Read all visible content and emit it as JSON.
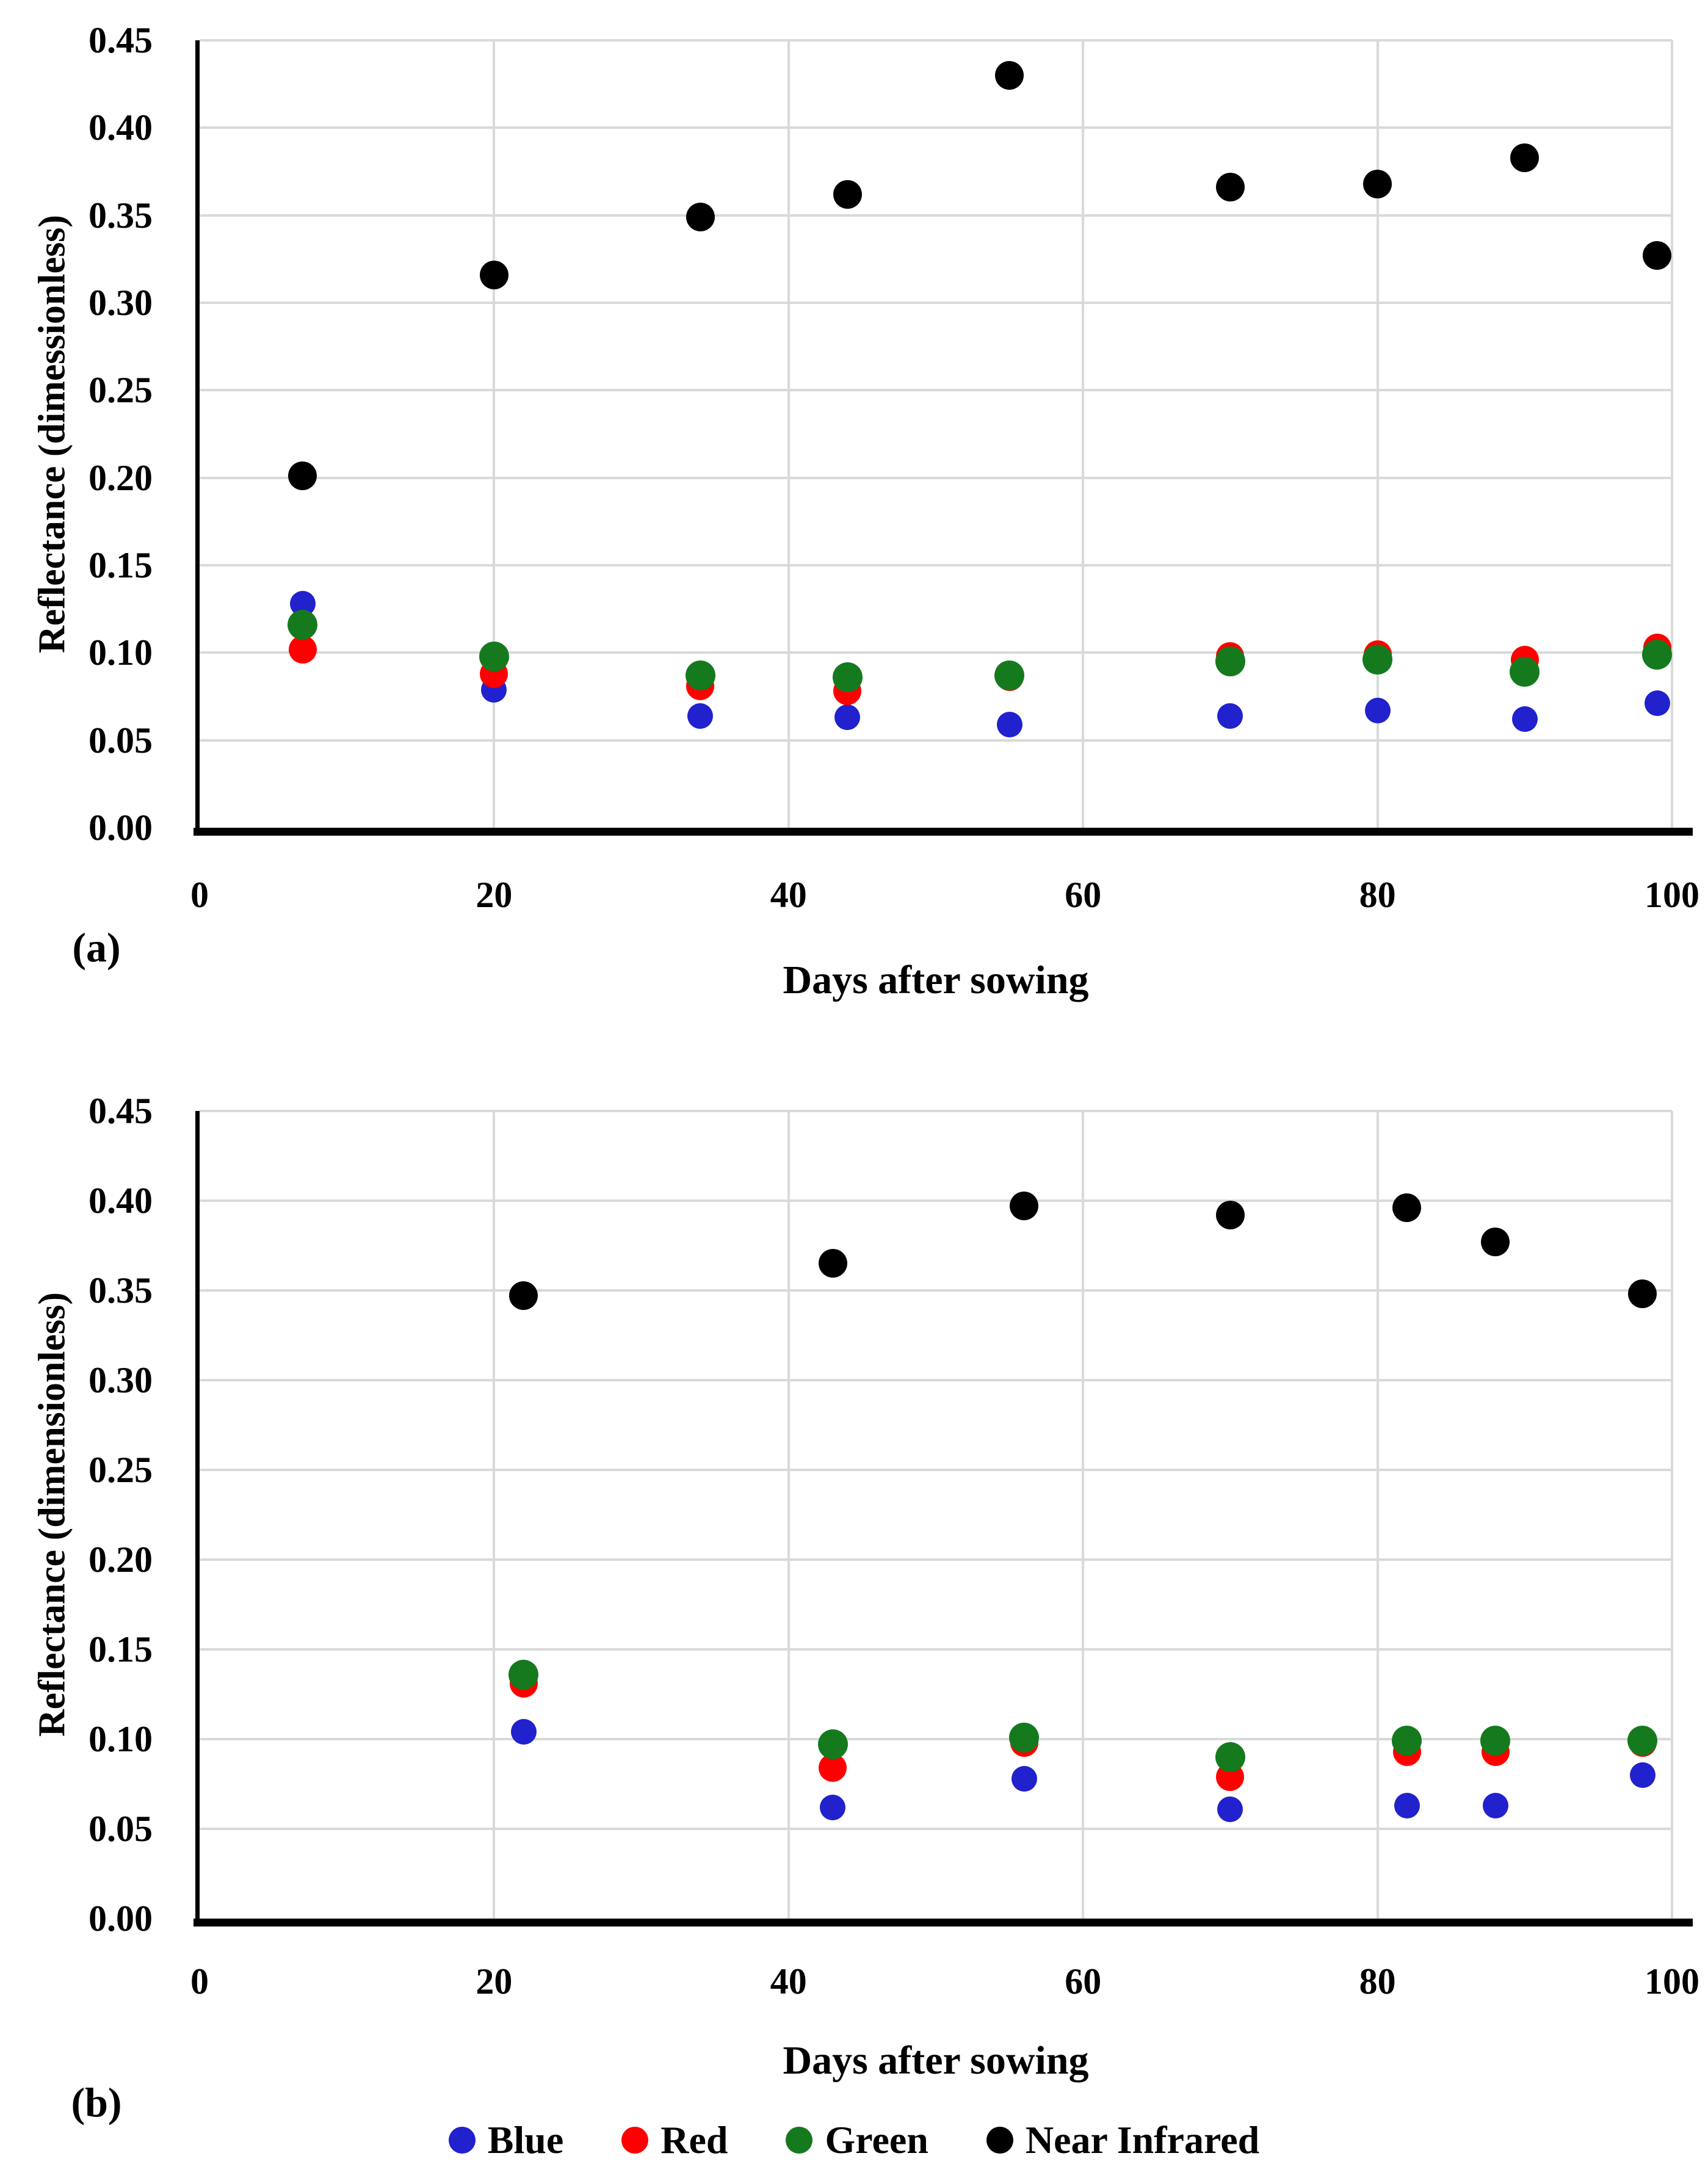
{
  "style": {
    "background": "#ffffff",
    "grid_color": "#d9d9d9",
    "axis_color": "#000000"
  },
  "legend": {
    "items": [
      {
        "label": "Blue",
        "color": "#2121ce"
      },
      {
        "label": "Red",
        "color": "#ff0000"
      },
      {
        "label": "Green",
        "color": "#157a1e"
      },
      {
        "label": "Near Infrared",
        "color": "#000000"
      }
    ]
  },
  "chart_data": [
    {
      "id": "a",
      "type": "scatter",
      "caption": "(a)",
      "xlabel": "Days after sowing",
      "ylabel": "Reflectance (dimessionless)",
      "xlim": [
        0,
        100
      ],
      "ylim": [
        0.0,
        0.45
      ],
      "grid": true,
      "x_ticks": [
        "0",
        "20",
        "40",
        "60",
        "80",
        "100"
      ],
      "y_ticks": [
        "0.00",
        "0.05",
        "0.10",
        "0.15",
        "0.20",
        "0.25",
        "0.30",
        "0.35",
        "0.40",
        "0.45"
      ],
      "x": [
        7,
        20,
        34,
        44,
        55,
        70,
        80,
        90,
        99
      ],
      "series": [
        {
          "name": "Blue",
          "color": "#2121ce",
          "values": [
            0.128,
            0.079,
            0.064,
            0.063,
            0.059,
            0.064,
            0.067,
            0.062,
            0.071
          ]
        },
        {
          "name": "Red",
          "color": "#ff0000",
          "values": [
            0.102,
            0.088,
            0.081,
            0.078,
            0.086,
            0.098,
            0.099,
            0.096,
            0.103
          ]
        },
        {
          "name": "Green",
          "color": "#157a1e",
          "values": [
            0.116,
            0.098,
            0.087,
            0.086,
            0.087,
            0.095,
            0.096,
            0.089,
            0.099
          ]
        },
        {
          "name": "Near Infrared",
          "color": "#000000",
          "values": [
            0.201,
            0.316,
            0.349,
            0.362,
            0.43,
            0.366,
            0.368,
            0.383,
            0.327
          ]
        }
      ]
    },
    {
      "id": "b",
      "type": "scatter",
      "caption": "(b)",
      "xlabel": "Days after sowing",
      "ylabel": "Reflectance (dimensionless)",
      "xlim": [
        0,
        100
      ],
      "ylim": [
        0.0,
        0.45
      ],
      "grid": true,
      "x_ticks": [
        "0",
        "20",
        "40",
        "60",
        "80",
        "100"
      ],
      "y_ticks": [
        "0.00",
        "0.05",
        "0.10",
        "0.15",
        "0.20",
        "0.25",
        "0.30",
        "0.35",
        "0.40",
        "0.45"
      ],
      "x": [
        22,
        43,
        56,
        70,
        82,
        88,
        98
      ],
      "series": [
        {
          "name": "Blue",
          "color": "#2121ce",
          "values": [
            0.104,
            0.062,
            0.078,
            0.061,
            0.063,
            0.063,
            0.08
          ]
        },
        {
          "name": "Red",
          "color": "#ff0000",
          "values": [
            0.131,
            0.084,
            0.098,
            0.079,
            0.093,
            0.093,
            0.098
          ]
        },
        {
          "name": "Green",
          "color": "#157a1e",
          "values": [
            0.136,
            0.097,
            0.101,
            0.09,
            0.099,
            0.099,
            0.099
          ]
        },
        {
          "name": "Near Infrared",
          "color": "#000000",
          "values": [
            0.347,
            0.365,
            0.397,
            0.392,
            0.396,
            0.377,
            0.348
          ]
        }
      ]
    }
  ]
}
